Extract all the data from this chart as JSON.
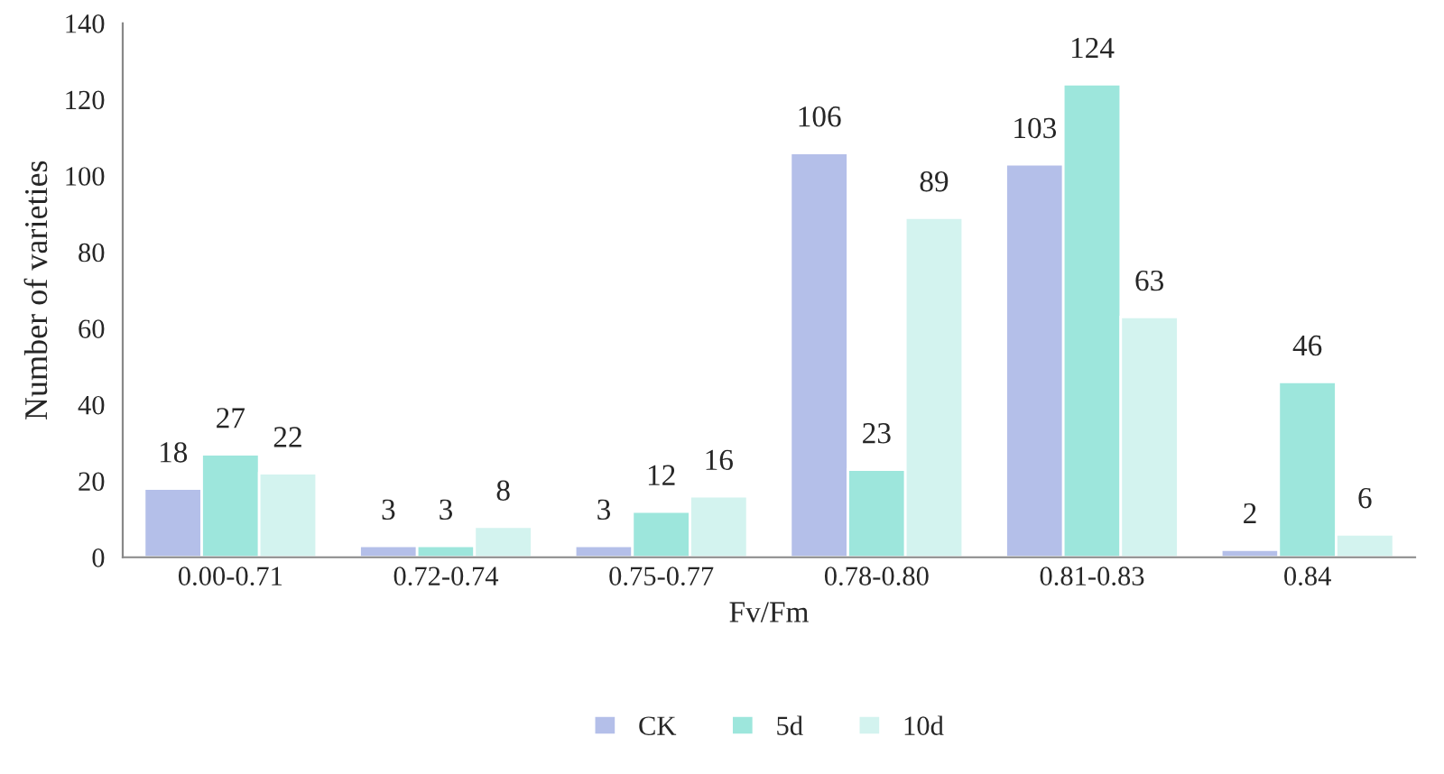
{
  "chart_data": {
    "type": "bar",
    "xlabel": "Fv/Fm",
    "ylabel": "Number of varieties",
    "categories": [
      "0.00-0.71",
      "0.72-0.74",
      "0.75-0.77",
      "0.78-0.80",
      "0.81-0.83",
      "0.84"
    ],
    "series": [
      {
        "name": "CK",
        "color": "#b4bfe9",
        "values": [
          18,
          3,
          3,
          106,
          103,
          2
        ]
      },
      {
        "name": "5d",
        "color": "#9de6dc",
        "values": [
          27,
          3,
          12,
          23,
          124,
          46
        ]
      },
      {
        "name": "10d",
        "color": "#d3f3ef",
        "values": [
          22,
          8,
          16,
          89,
          63,
          6
        ]
      }
    ],
    "ylim": [
      0,
      140
    ],
    "yticks": [
      0,
      20,
      40,
      60,
      80,
      100,
      120,
      140
    ],
    "data_labels": true,
    "grid": false,
    "legend": "bottom"
  }
}
